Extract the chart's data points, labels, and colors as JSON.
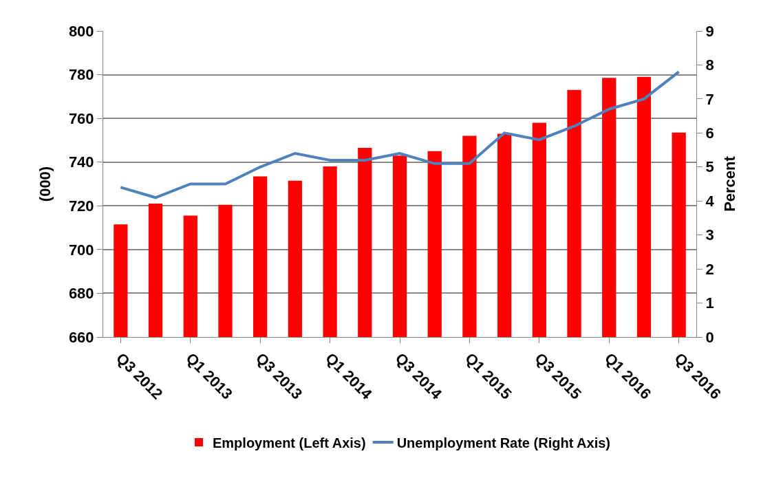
{
  "chart_data": {
    "type": "bar",
    "ylabel": "(000)",
    "y2label": "Percent",
    "categories": [
      "Q3 2012",
      null,
      "Q1 2013",
      null,
      "Q3 2013",
      null,
      "Q1 2014",
      null,
      "Q3 2014",
      null,
      "Q1 2015",
      null,
      "Q3 2015",
      null,
      "Q1 2016",
      null,
      "Q3 2016"
    ],
    "series": [
      {
        "name": "Employment (Left Axis)",
        "color": "#ff0000",
        "values": [
          711.5,
          721,
          715.5,
          720.5,
          733.5,
          731.5,
          738,
          746.5,
          743,
          745,
          752,
          753,
          758,
          773,
          778.5,
          779,
          753.5
        ]
      },
      {
        "name": "Unemployment Rate (Right Axis)",
        "type": "line",
        "axis": "y2",
        "color": "#4f81bd",
        "values": [
          4.4,
          4.1,
          4.5,
          4.5,
          5.0,
          5.4,
          5.2,
          5.2,
          5.4,
          5.1,
          5.1,
          6.0,
          5.8,
          6.2,
          6.7,
          7.0,
          7.8
        ]
      }
    ],
    "ylim": [
      660,
      800
    ],
    "yticks": [
      660,
      680,
      700,
      720,
      740,
      760,
      780,
      800
    ],
    "y2lim": [
      0,
      9
    ],
    "y2ticks": [
      0,
      1,
      2,
      3,
      4,
      5,
      6,
      7,
      8,
      9
    ],
    "grid": "y",
    "legend": "bottom",
    "marker": "none",
    "line_style": "solid"
  }
}
